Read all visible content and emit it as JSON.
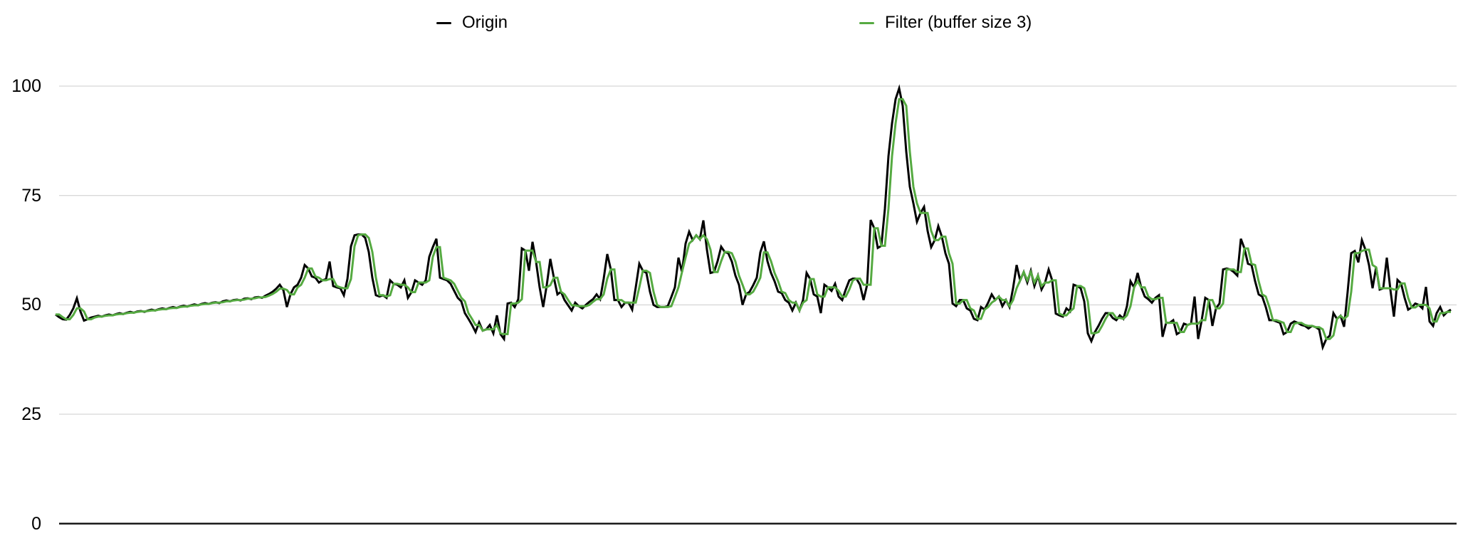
{
  "page": {
    "background": "#ffffff"
  },
  "legend": {
    "items": [
      {
        "label": "Origin",
        "color": "#000000"
      },
      {
        "label": "Filter (buffer size 3)",
        "color": "#55aa41"
      }
    ]
  },
  "axis": {
    "ytick_labels": [
      "100",
      "75",
      "50",
      "25",
      "0"
    ]
  },
  "colors": {
    "grid": "#cccccc",
    "zero_axis": "#1a1a1a",
    "text": "#000000",
    "origin_line": "#000000",
    "filter_line": "#55aa41"
  },
  "chart_data": {
    "type": "line",
    "title": "",
    "xlabel": "",
    "ylabel": "",
    "x": {
      "kind": "sample-index",
      "start": 0,
      "count": 393
    },
    "ylim": [
      0,
      100
    ],
    "yticks": [
      0,
      25,
      50,
      75,
      100
    ],
    "grid": "horizontal-gridlines-at-yticks",
    "legend_position": "top-center",
    "series": [
      {
        "name": "Origin",
        "color": "#000000",
        "values": [
          47.8,
          47.2,
          46.7,
          46.6,
          47.7,
          49.2,
          51.5,
          48.5,
          46.4,
          46.7,
          47.1,
          47.3,
          47.5,
          47.3,
          47.6,
          47.8,
          47.6,
          47.9,
          48.1,
          47.9,
          48.2,
          48.4,
          48.2,
          48.5,
          48.6,
          48.4,
          48.7,
          48.9,
          48.7,
          49.0,
          49.2,
          49.0,
          49.3,
          49.5,
          49.3,
          49.6,
          49.8,
          49.6,
          49.9,
          50.1,
          49.9,
          50.2,
          50.4,
          50.2,
          50.5,
          50.6,
          50.4,
          50.8,
          51.0,
          50.8,
          51.1,
          51.2,
          51.0,
          51.4,
          51.5,
          51.3,
          51.7,
          51.8,
          51.6,
          52.1,
          52.5,
          53.0,
          53.7,
          54.6,
          53.4,
          49.5,
          52.4,
          54.0,
          54.6,
          56.2,
          59.1,
          58.3,
          56.5,
          56.2,
          55.1,
          55.6,
          55.9,
          59.9,
          54.3,
          54.0,
          53.8,
          52.2,
          55.9,
          63.4,
          65.9,
          66.1,
          66.1,
          65.3,
          62.1,
          56.2,
          52.2,
          51.9,
          52.2,
          51.6,
          55.6,
          54.8,
          54.6,
          54.0,
          55.6,
          51.6,
          52.9,
          55.6,
          55.1,
          54.6,
          55.6,
          61.0,
          63.2,
          65.1,
          56.2,
          55.9,
          55.6,
          54.8,
          53.2,
          51.6,
          50.8,
          48.1,
          46.8,
          45.4,
          43.8,
          46.0,
          44.1,
          44.4,
          45.4,
          43.5,
          47.6,
          43.3,
          42.2,
          50.3,
          50.5,
          49.5,
          51.3,
          62.9,
          62.4,
          57.8,
          64.4,
          59.8,
          54.0,
          49.5,
          54.5,
          60.5,
          56.2,
          52.4,
          53.0,
          51.1,
          49.9,
          48.7,
          50.5,
          49.7,
          49.2,
          50.0,
          50.7,
          51.3,
          52.4,
          51.3,
          56.0,
          61.6,
          58.1,
          51.1,
          51.1,
          49.5,
          50.5,
          50.5,
          48.9,
          54.0,
          59.4,
          57.8,
          57.3,
          53.0,
          50.0,
          49.5,
          49.5,
          49.5,
          49.7,
          51.8,
          54.0,
          60.8,
          57.5,
          64.0,
          66.7,
          64.8,
          65.9,
          65.0,
          69.3,
          62.6,
          57.3,
          57.5,
          60.0,
          63.3,
          62.1,
          61.8,
          59.9,
          56.7,
          54.6,
          50.0,
          52.4,
          53.0,
          54.5,
          56.2,
          62.0,
          64.5,
          60.0,
          57.3,
          55.4,
          53.0,
          52.7,
          51.1,
          50.5,
          48.7,
          50.5,
          48.7,
          51.1,
          57.3,
          55.9,
          52.4,
          51.9,
          48.1,
          54.6,
          54.0,
          53.2,
          54.8,
          51.9,
          51.1,
          53.5,
          55.6,
          56.0,
          56.0,
          54.6,
          51.1,
          54.6,
          69.4,
          67.5,
          63.0,
          63.5,
          72.0,
          84.0,
          91.5,
          97.0,
          99.5,
          95.5,
          85.0,
          77.0,
          73.2,
          69.0,
          71.0,
          72.4,
          66.9,
          63.2,
          64.8,
          68.0,
          65.6,
          61.8,
          59.4,
          50.3,
          49.7,
          51.1,
          51.1,
          49.2,
          48.7,
          46.8,
          46.5,
          49.5,
          48.9,
          50.5,
          52.4,
          51.1,
          51.9,
          49.7,
          51.1,
          49.5,
          53.8,
          59.1,
          55.6,
          57.5,
          55.1,
          57.8,
          54.3,
          56.7,
          53.5,
          55.1,
          58.1,
          55.6,
          48.0,
          47.6,
          47.3,
          49.2,
          48.5,
          54.6,
          54.3,
          53.8,
          50.8,
          43.5,
          41.7,
          43.8,
          45.2,
          46.8,
          48.1,
          48.1,
          47.0,
          46.5,
          47.6,
          46.8,
          49.7,
          55.4,
          54.0,
          57.3,
          54.0,
          51.9,
          51.3,
          50.5,
          51.6,
          52.2,
          42.7,
          45.9,
          45.9,
          46.5,
          43.3,
          43.8,
          45.7,
          45.4,
          45.7,
          51.9,
          42.2,
          46.5,
          51.6,
          51.1,
          45.2,
          49.2,
          50.3,
          58.1,
          58.3,
          58.1,
          57.5,
          56.7,
          65.1,
          62.9,
          59.4,
          59.1,
          55.4,
          52.4,
          51.9,
          49.5,
          46.5,
          46.5,
          46.2,
          45.9,
          43.3,
          43.8,
          45.7,
          46.2,
          45.9,
          45.4,
          45.2,
          44.6,
          45.2,
          44.9,
          44.4,
          40.3,
          42.2,
          43.0,
          48.1,
          46.8,
          47.5,
          45.0,
          53.0,
          61.8,
          62.3,
          59.7,
          64.8,
          62.6,
          59.1,
          53.8,
          58.6,
          53.5,
          53.8,
          60.8,
          53.5,
          47.3,
          55.7,
          54.9,
          51.6,
          48.9,
          49.4,
          50.3,
          50.0,
          49.2,
          54.1,
          46.2,
          45.2,
          48.1,
          49.5,
          47.6,
          48.4,
          48.9
        ]
      },
      {
        "name": "Filter (buffer size 3)",
        "color": "#55aa41",
        "derived": "running filter over Origin with buffer size 3 (median of the last 3 samples); values are computed from the Origin series"
      }
    ]
  }
}
